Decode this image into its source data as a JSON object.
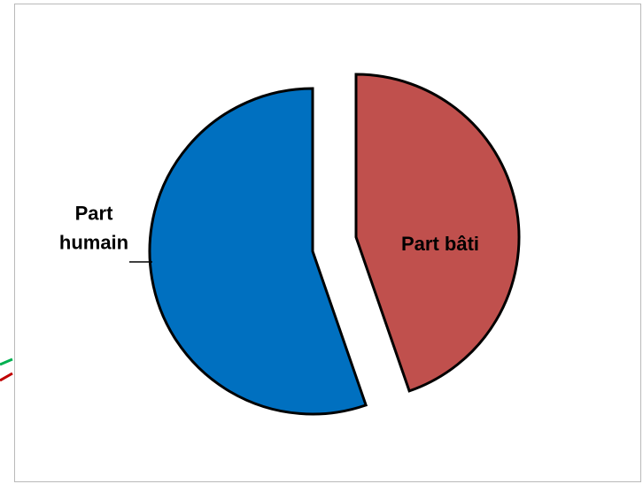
{
  "chart_data": {
    "type": "pie",
    "exploded": true,
    "outline_color": "#000000",
    "slices": [
      {
        "label": "Part bâti",
        "label_lines": [
          "Part bâti"
        ],
        "value": 44.7,
        "color": "#c0504d"
      },
      {
        "label": "Part humain",
        "label_lines": [
          "Part",
          "humain"
        ],
        "value": 55.3,
        "color": "#0070c0"
      }
    ]
  }
}
